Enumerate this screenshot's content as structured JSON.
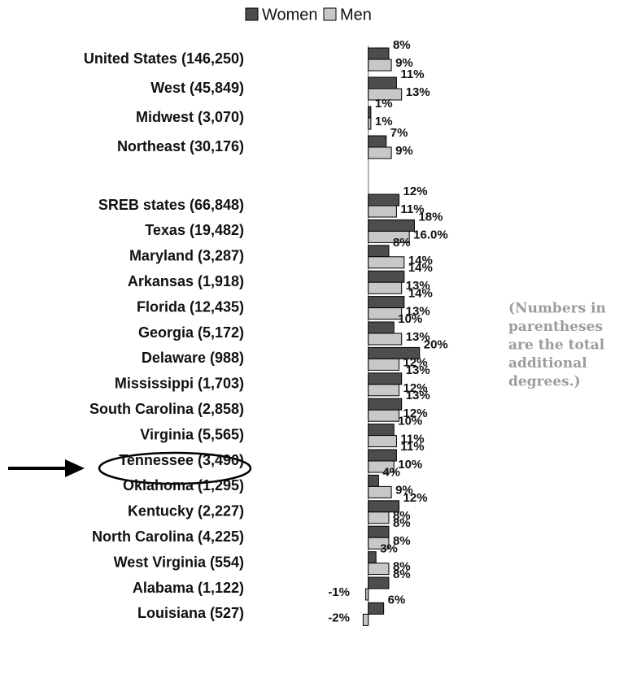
{
  "chart_data": {
    "type": "hbar",
    "categories": [
      "United States (146,250)",
      "West (45,849)",
      "Midwest (3,070)",
      "Northeast (30,176)",
      null,
      "SREB states (66,848)",
      "Texas (19,482)",
      "Maryland (3,287)",
      "Arkansas (1,918)",
      "Florida (12,435)",
      "Georgia (5,172)",
      "Delaware (988)",
      "Mississippi (1,703)",
      "South Carolina (2,858)",
      "Virginia (5,565)",
      "Tennessee (3,490)",
      "Oklahoma (1,295)",
      "Kentucky (2,227)",
      "North Carolina (4,225)",
      "West Virginia (554)",
      "Alabama (1,122)",
      "Louisiana (527)"
    ],
    "series": [
      {
        "name": "Women",
        "color": "#4d4d4d",
        "values": [
          8,
          11,
          1,
          7,
          null,
          12,
          18,
          8,
          14,
          14,
          10,
          20,
          13,
          13,
          10,
          11,
          4,
          12,
          8,
          3,
          8,
          6
        ],
        "value_labels": [
          "8%",
          "11%",
          "1%",
          "7%",
          null,
          "12%",
          "18%",
          "8%",
          "14%",
          "14%",
          "10%",
          "20%",
          "13%",
          "13%",
          "10%",
          "11%",
          "4%",
          "12%",
          "8%",
          "3%",
          "8%",
          "6%"
        ]
      },
      {
        "name": "Men",
        "color": "#c8c8c8",
        "values": [
          9,
          13,
          1,
          9,
          null,
          11,
          16,
          14,
          13,
          13,
          13,
          12,
          12,
          12,
          11,
          10,
          9,
          8,
          8,
          8,
          -1,
          -2
        ],
        "value_labels": [
          "9%",
          "13%",
          "1%",
          "9%",
          null,
          "11%",
          "16.0%",
          "14%",
          "13%",
          "13%",
          "13%",
          "12%",
          "12%",
          "12%",
          "11%",
          "10%",
          "9%",
          "8%",
          "8%",
          "8%",
          "-1%",
          "-2%"
        ]
      }
    ],
    "xlim": [
      -5,
      30
    ],
    "annotation": [
      "(Numbers in",
      "parentheses",
      "are the total",
      "additional",
      "degrees.)"
    ]
  }
}
